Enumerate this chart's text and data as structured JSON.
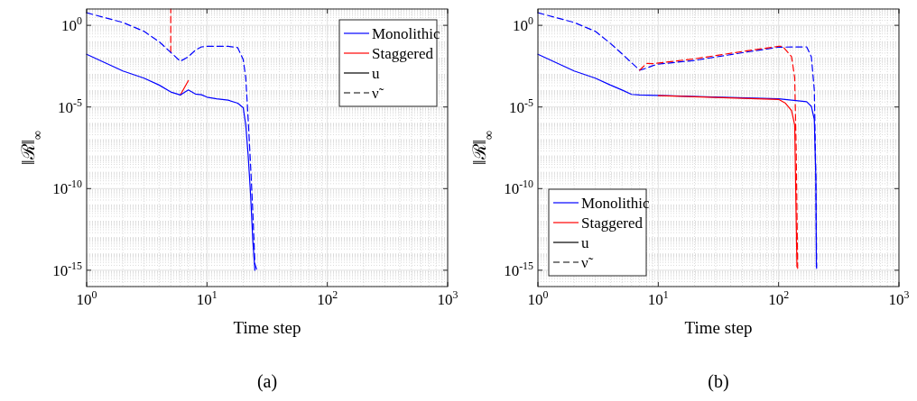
{
  "chart_data": [
    {
      "type": "line",
      "xlabel": "Time step",
      "ylabel": "‖ℛ‖$_{∞}$",
      "annotations": [
        "(a)"
      ],
      "log": "xy",
      "grid": true,
      "legend": "top right",
      "xlim": [
        1,
        1000
      ],
      "ylim": [
        1e-16,
        10
      ],
      "xticks": [
        {
          "value": 1,
          "label": "10$^{0}$"
        },
        {
          "value": 10,
          "label": "10$^{1}$"
        },
        {
          "value": 100,
          "label": "10$^{2}$"
        },
        {
          "value": 1000,
          "label": "10$^{3}$"
        }
      ],
      "yticks": [
        {
          "value": 1e-15,
          "label": "10$^{-15}$"
        },
        {
          "value": 1e-10,
          "label": "10$^{-10}$"
        },
        {
          "value": 1e-05,
          "label": "10$^{-5}$"
        },
        {
          "value": 1,
          "label": "10$^{0}$"
        }
      ],
      "series": [
        {
          "color": "#ff0000",
          "line_style": "dashed",
          "x": [
            5,
            5
          ],
          "values": [
            0.022,
            10
          ]
        },
        {
          "color": "#0000ff",
          "line_style": "dashed",
          "x": [
            1,
            2,
            3,
            4,
            5,
            6,
            7,
            8,
            9,
            10,
            15,
            18,
            20,
            21,
            22,
            23,
            24,
            25,
            26
          ],
          "values": [
            5.9,
            1.5,
            0.43,
            0.1,
            0.022,
            0.0063,
            0.012,
            0.03,
            0.048,
            0.052,
            0.052,
            0.043,
            0.0079,
            0.00063,
            1.6e-06,
            3.2e-09,
            5e-12,
            2.5e-15,
            1e-15
          ]
        },
        {
          "color": "#ff0000",
          "line_style": "solid",
          "x": [
            6,
            7
          ],
          "values": [
            5.4e-05,
            0.00041
          ]
        },
        {
          "color": "#0000ff",
          "line_style": "solid",
          "x": [
            1,
            2,
            3,
            4,
            5,
            6,
            7,
            8,
            9,
            10,
            12,
            15,
            18,
            20,
            21,
            22,
            23,
            24,
            25
          ],
          "values": [
            0.017,
            0.0016,
            0.00058,
            0.00022,
            8.3e-05,
            5.4e-05,
            0.00011,
            6.2e-05,
            5.6e-05,
            4e-05,
            3.2e-05,
            2.6e-05,
            1.7e-05,
            9.1e-06,
            7.9e-07,
            1e-08,
            5e-11,
            7.9e-14,
            1e-15
          ]
        },
        {
          "name": "Monolithic",
          "color": "#0000ff",
          "line_style": "solid"
        },
        {
          "name": "Staggered",
          "color": "#ff0000",
          "line_style": "solid"
        },
        {
          "name": "u",
          "color": "#000000",
          "line_style": "solid"
        },
        {
          "name": "ν̃",
          "color": "#000000",
          "line_style": "dashed"
        }
      ]
    },
    {
      "type": "line",
      "xlabel": "Time step",
      "ylabel": "‖ℛ‖$_{∞}$",
      "annotations": [
        "(b)"
      ],
      "log": "xy",
      "grid": true,
      "legend": "bottom left",
      "xlim": [
        1,
        1000
      ],
      "ylim": [
        1e-16,
        10
      ],
      "xticks": [
        {
          "value": 1,
          "label": "10$^{0}$"
        },
        {
          "value": 10,
          "label": "10$^{1}$"
        },
        {
          "value": 100,
          "label": "10$^{2}$"
        },
        {
          "value": 1000,
          "label": "10$^{3}$"
        }
      ],
      "yticks": [
        {
          "value": 1e-15,
          "label": "10$^{-15}$"
        },
        {
          "value": 1e-10,
          "label": "10$^{-10}$"
        },
        {
          "value": 1e-05,
          "label": "10$^{-5}$"
        },
        {
          "value": 1,
          "label": "10$^{0}$"
        }
      ],
      "series": [
        {
          "color": "#0000ff",
          "line_style": "dashed",
          "x": [
            1,
            2,
            3,
            4,
            5,
            6,
            7,
            8,
            9,
            10,
            20,
            50,
            100,
            171,
            187,
            198,
            204,
            207
          ],
          "values": [
            5.9,
            1.5,
            0.43,
            0.079,
            0.018,
            0.0051,
            0.0018,
            0.0024,
            0.0034,
            0.0042,
            0.0071,
            0.021,
            0.046,
            0.048,
            0.012,
            0.00011,
            4e-10,
            1.3e-15
          ]
        },
        {
          "color": "#ff0000",
          "line_style": "dashed",
          "x": [
            7,
            8,
            9,
            20,
            50,
            100,
            108,
            128,
            136,
            140,
            144
          ],
          "values": [
            0.0018,
            0.0046,
            0.0045,
            0.0089,
            0.025,
            0.052,
            0.052,
            0.012,
            0.00063,
            2.5e-08,
            1.3e-15
          ]
        },
        {
          "color": "#0000ff",
          "line_style": "solid",
          "x": [
            1,
            2,
            3,
            4,
            5,
            6,
            7,
            100,
            171,
            187,
            198,
            204,
            206
          ],
          "values": [
            0.017,
            0.0016,
            0.00058,
            0.00022,
            0.00011,
            5.9e-05,
            5.4e-05,
            3.2e-05,
            2.1e-05,
            1.1e-05,
            1.7e-06,
            4e-10,
            1.6e-15
          ]
        },
        {
          "color": "#ff0000",
          "line_style": "solid",
          "x": [
            10,
            100,
            114,
            128,
            136,
            142
          ],
          "values": [
            5e-05,
            2.9e-05,
            1.7e-05,
            6e-06,
            7.9e-07,
            1.6e-15
          ]
        },
        {
          "name": "Monolithic",
          "color": "#0000ff",
          "line_style": "solid"
        },
        {
          "name": "Staggered",
          "color": "#ff0000",
          "line_style": "solid"
        },
        {
          "name": "u",
          "color": "#000000",
          "line_style": "solid"
        },
        {
          "name": "ν̃",
          "color": "#000000",
          "line_style": "dashed"
        }
      ]
    }
  ]
}
